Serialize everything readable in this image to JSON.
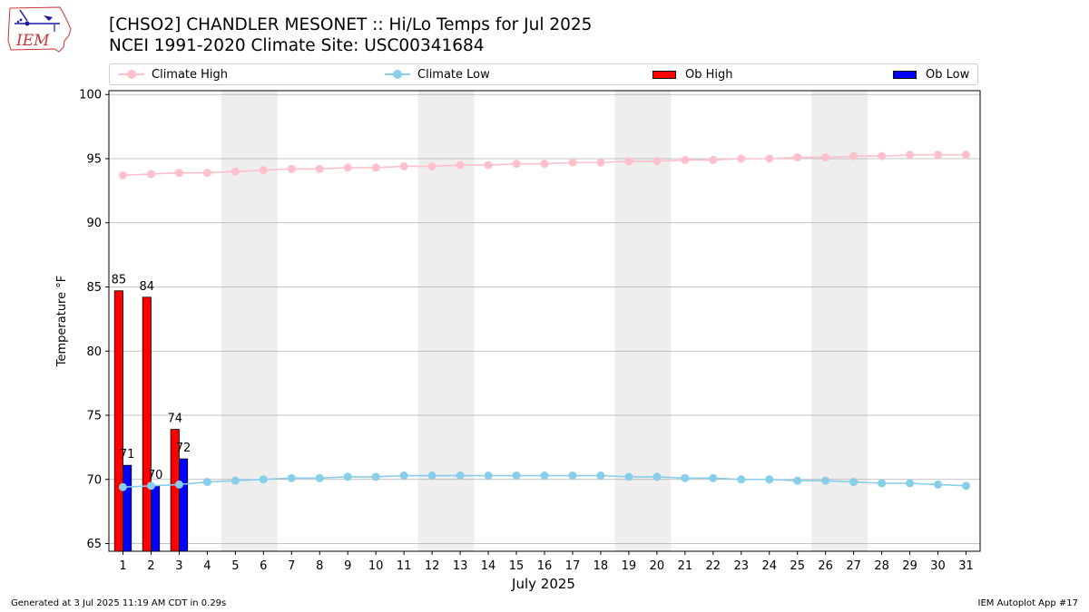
{
  "header": {
    "title_line1": "[CHSO2] CHANDLER MESONET :: Hi/Lo Temps for Jul 2025",
    "title_line2": "NCEI 1991-2020 Climate Site: USC00341684"
  },
  "logo": {
    "text": "IEM"
  },
  "footer": {
    "left": "Generated at 3 Jul 2025 11:19 AM CDT in 0.29s",
    "right": "IEM Autoplot App #17"
  },
  "colors": {
    "climate_high": "#ffc0cb",
    "climate_low": "#87ceeb",
    "ob_high": "#ff0000",
    "ob_low": "#0000ff",
    "weekend_band": "#eeeeee",
    "grid": "#b0b0b0"
  },
  "chart_data": {
    "type": "bar",
    "xlabel": "July 2025",
    "ylabel": "Temperature °F",
    "ylim": [
      64.4,
      100.3
    ],
    "xlim": [
      0.5,
      31.5
    ],
    "yticks": [
      65,
      70,
      75,
      80,
      85,
      90,
      95,
      100
    ],
    "grid": true,
    "legend_position": "top, above plot",
    "x": [
      1,
      2,
      3,
      4,
      5,
      6,
      7,
      8,
      9,
      10,
      11,
      12,
      13,
      14,
      15,
      16,
      17,
      18,
      19,
      20,
      21,
      22,
      23,
      24,
      25,
      26,
      27,
      28,
      29,
      30,
      31
    ],
    "weekend_bands": [
      [
        5,
        6
      ],
      [
        12,
        13
      ],
      [
        19,
        20
      ],
      [
        26,
        27
      ]
    ],
    "series": [
      {
        "name": "Climate High",
        "kind": "line",
        "values": [
          93.7,
          93.8,
          93.9,
          93.9,
          94.0,
          94.1,
          94.2,
          94.2,
          94.3,
          94.3,
          94.4,
          94.4,
          94.5,
          94.5,
          94.6,
          94.6,
          94.7,
          94.7,
          94.8,
          94.8,
          94.9,
          94.9,
          95.0,
          95.0,
          95.1,
          95.1,
          95.2,
          95.2,
          95.3,
          95.3,
          95.3
        ]
      },
      {
        "name": "Climate Low",
        "kind": "line",
        "values": [
          69.4,
          69.5,
          69.6,
          69.8,
          69.9,
          70.0,
          70.1,
          70.1,
          70.2,
          70.2,
          70.3,
          70.3,
          70.3,
          70.3,
          70.3,
          70.3,
          70.3,
          70.3,
          70.2,
          70.2,
          70.1,
          70.1,
          70.0,
          70.0,
          69.9,
          69.9,
          69.8,
          69.7,
          69.7,
          69.6,
          69.5
        ]
      },
      {
        "name": "Ob High",
        "kind": "bar",
        "x": [
          1,
          2,
          3
        ],
        "values": [
          84.7,
          84.2,
          73.9
        ],
        "labels": [
          "85",
          "84",
          "74"
        ]
      },
      {
        "name": "Ob Low",
        "kind": "bar",
        "x": [
          1,
          2,
          3
        ],
        "values": [
          71.1,
          69.5,
          71.6
        ],
        "labels": [
          "71",
          "70",
          "72"
        ]
      }
    ]
  }
}
